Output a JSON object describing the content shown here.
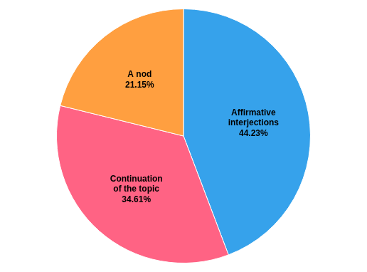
{
  "chart_data": {
    "type": "pie",
    "categories": [
      "Affirmative\ninterjections",
      "Continuation\nof the topic",
      "A nod"
    ],
    "values": [
      44.23,
      34.61,
      21.15
    ],
    "value_labels": [
      "44.23%",
      "34.61%",
      "21.15%"
    ],
    "data_labels": true
  }
}
